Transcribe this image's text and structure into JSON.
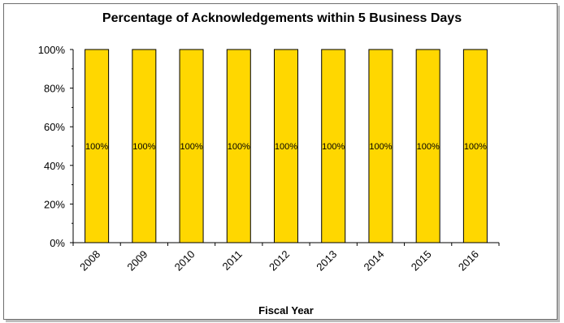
{
  "chart_data": {
    "type": "bar",
    "title": "Percentage of Acknowledgements within 5 Business Days",
    "xlabel": "Fiscal Year",
    "ylabel": "",
    "categories": [
      "2008",
      "2009",
      "2010",
      "2011",
      "2012",
      "2013",
      "2014",
      "2015",
      "2016"
    ],
    "values": [
      100,
      100,
      100,
      100,
      100,
      100,
      100,
      100,
      100
    ],
    "data_labels": [
      "100%",
      "100%",
      "100%",
      "100%",
      "100%",
      "100%",
      "100%",
      "100%",
      "100%"
    ],
    "ylim": [
      0,
      100
    ],
    "yticks": [
      "0%",
      "20%",
      "40%",
      "60%",
      "80%",
      "100%"
    ],
    "grid": false,
    "legend": "none",
    "colors": {
      "bar_fill": "#ffd700",
      "bar_stroke": "#000000"
    }
  }
}
